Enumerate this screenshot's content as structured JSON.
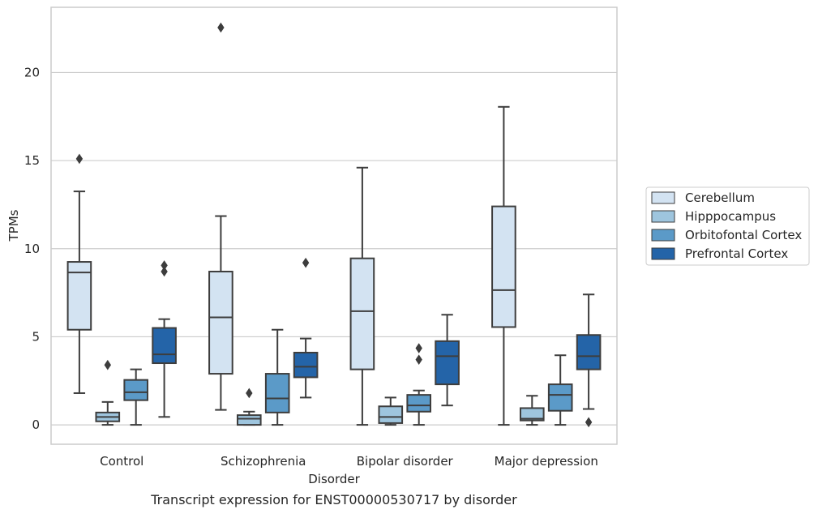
{
  "chart_data": {
    "type": "box",
    "title": "",
    "caption": "Transcript expression for ENST00000530717 by disorder",
    "xlabel": "Disorder",
    "ylabel": "TPMs",
    "ylim": [
      -1.1,
      23.7
    ],
    "yticks": [
      0,
      5,
      10,
      15,
      20
    ],
    "grid": "horizontal",
    "legend_position": "right",
    "categories": [
      "Control",
      "Schizophrenia",
      "Bipolar disorder",
      "Major depression"
    ],
    "series": [
      {
        "name": "Cerebellum",
        "color": "#d3e3f2",
        "boxes": [
          {
            "whisker_low": 1.8,
            "q1": 5.4,
            "median": 8.65,
            "q3": 9.25,
            "whisker_high": 13.25,
            "outliers": [
              15.1
            ]
          },
          {
            "whisker_low": 0.85,
            "q1": 2.9,
            "median": 6.1,
            "q3": 8.7,
            "whisker_high": 11.85,
            "outliers": [
              22.55
            ]
          },
          {
            "whisker_low": 0.0,
            "q1": 3.15,
            "median": 6.45,
            "q3": 9.45,
            "whisker_high": 14.6,
            "outliers": []
          },
          {
            "whisker_low": 0.0,
            "q1": 5.55,
            "median": 7.65,
            "q3": 12.4,
            "whisker_high": 18.05,
            "outliers": []
          }
        ]
      },
      {
        "name": "Hipppocampus",
        "color": "#9ec5de",
        "boxes": [
          {
            "whisker_low": 0.0,
            "q1": 0.2,
            "median": 0.45,
            "q3": 0.7,
            "whisker_high": 1.3,
            "outliers": [
              3.4
            ]
          },
          {
            "whisker_low": 0.0,
            "q1": 0.0,
            "median": 0.35,
            "q3": 0.55,
            "whisker_high": 0.75,
            "outliers": [
              1.8
            ]
          },
          {
            "whisker_low": 0.0,
            "q1": 0.1,
            "median": 0.45,
            "q3": 1.05,
            "whisker_high": 1.55,
            "outliers": []
          },
          {
            "whisker_low": 0.0,
            "q1": 0.25,
            "median": 0.35,
            "q3": 0.95,
            "whisker_high": 1.65,
            "outliers": []
          }
        ]
      },
      {
        "name": "Orbitofontal Cortex",
        "color": "#5b9ac8",
        "boxes": [
          {
            "whisker_low": 0.0,
            "q1": 1.4,
            "median": 1.85,
            "q3": 2.55,
            "whisker_high": 3.15,
            "outliers": []
          },
          {
            "whisker_low": 0.0,
            "q1": 0.7,
            "median": 1.5,
            "q3": 2.9,
            "whisker_high": 5.4,
            "outliers": []
          },
          {
            "whisker_low": 0.0,
            "q1": 0.75,
            "median": 1.1,
            "q3": 1.7,
            "whisker_high": 1.95,
            "outliers": [
              3.7,
              4.35
            ]
          },
          {
            "whisker_low": 0.0,
            "q1": 0.8,
            "median": 1.7,
            "q3": 2.3,
            "whisker_high": 3.95,
            "outliers": []
          }
        ]
      },
      {
        "name": "Prefrontal Cortex",
        "color": "#2464a8",
        "boxes": [
          {
            "whisker_low": 0.45,
            "q1": 3.5,
            "median": 4.0,
            "q3": 5.5,
            "whisker_high": 6.0,
            "outliers": [
              8.7,
              9.05
            ]
          },
          {
            "whisker_low": 1.55,
            "q1": 2.7,
            "median": 3.3,
            "q3": 4.1,
            "whisker_high": 4.9,
            "outliers": [
              9.2
            ]
          },
          {
            "whisker_low": 1.1,
            "q1": 2.3,
            "median": 3.9,
            "q3": 4.75,
            "whisker_high": 6.25,
            "outliers": []
          },
          {
            "whisker_low": 0.9,
            "q1": 3.15,
            "median": 3.9,
            "q3": 5.1,
            "whisker_high": 7.4,
            "outliers": [
              0.15
            ]
          }
        ]
      }
    ]
  }
}
